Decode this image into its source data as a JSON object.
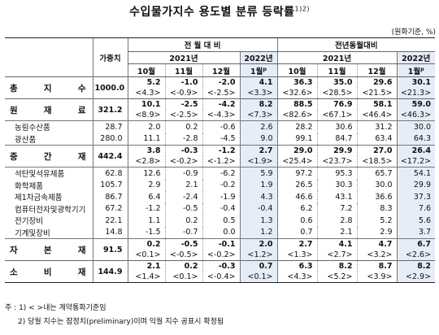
{
  "title": "수입물가지수 용도별 분류 등락률",
  "title_note": "1)2)",
  "unit": "(원화기준, %)",
  "header": {
    "weight": "가중치",
    "mom": "전 월 대 비",
    "yoy": "전년동월대비",
    "y2021": "2021년",
    "y2022": "2022년",
    "months": [
      "10월",
      "11월",
      "12월",
      "1월"
    ],
    "prelim_mark": "p"
  },
  "rows": [
    {
      "label": "총 지 수",
      "weight": "1000.0",
      "vals": [
        "5.2",
        "-1.0",
        "-2.0",
        "4.1",
        "36.3",
        "35.0",
        "29.6",
        "30.1"
      ],
      "paren": [
        "<4.3>",
        "<-0.9>",
        "<-2.5>",
        "<3.3>",
        "<32.6>",
        "<28.5>",
        "<21.5>",
        "<21.3>"
      ],
      "subs": []
    },
    {
      "label": "원 재 료",
      "weight": "321.2",
      "vals": [
        "10.1",
        "-2.5",
        "-4.2",
        "8.2",
        "88.5",
        "76.9",
        "58.1",
        "59.0"
      ],
      "paren": [
        "<8.9>",
        "<-2.5>",
        "<-4.3>",
        "<7.3>",
        "<82.6>",
        "<67.1>",
        "<46.4>",
        "<46.3>"
      ],
      "subs": [
        {
          "label": "농림수산품",
          "weight": "28.7",
          "vals": [
            "2.0",
            "0.2",
            "-0.6",
            "2.6",
            "28.2",
            "30.6",
            "31.2",
            "30.0"
          ]
        },
        {
          "label": "광산품",
          "weight": "280.0",
          "vals": [
            "11.1",
            "-2.8",
            "-4.5",
            "9.0",
            "99.1",
            "84.7",
            "63.4",
            "64.3"
          ]
        }
      ]
    },
    {
      "label": "중 간 재",
      "weight": "442.4",
      "vals": [
        "3.8",
        "-0.3",
        "-1.2",
        "2.7",
        "29.0",
        "29.9",
        "27.0",
        "26.4"
      ],
      "paren": [
        "<2.8>",
        "<-0.2>",
        "<-1.2>",
        "<1.9>",
        "<25.4>",
        "<23.7>",
        "<18.5>",
        "<17.2>"
      ],
      "subs": [
        {
          "label": "석탄및석유제품",
          "weight": "62.8",
          "vals": [
            "12.6",
            "-0.9",
            "-6.2",
            "5.9",
            "97.2",
            "95.3",
            "65.7",
            "54.1"
          ]
        },
        {
          "label": "화학제품",
          "weight": "105.7",
          "vals": [
            "2.9",
            "2.1",
            "-0.2",
            "1.9",
            "26.5",
            "30.3",
            "30.0",
            "29.9"
          ]
        },
        {
          "label": "제1차금속제품",
          "weight": "86.7",
          "vals": [
            "6.4",
            "-2.4",
            "-1.9",
            "4.3",
            "46.6",
            "43.1",
            "36.6",
            "37.3"
          ]
        },
        {
          "label": "컴퓨터전자및광학기기",
          "weight": "67.2",
          "vals": [
            "-1.2",
            "-0.5",
            "-0.4",
            "-0.4",
            "6.2",
            "7.2",
            "8.3",
            "7.6"
          ]
        },
        {
          "label": "전기장비",
          "weight": "22.1",
          "vals": [
            "1.1",
            "0.2",
            "0.5",
            "1.3",
            "0.6",
            "2.8",
            "5.2",
            "5.6"
          ]
        },
        {
          "label": "기계및장비",
          "weight": "14.8",
          "vals": [
            "-1.5",
            "-0.7",
            "0.0",
            "1.2",
            "0.7",
            "2.1",
            "2.9",
            "3.7"
          ]
        }
      ]
    },
    {
      "label": "자 본 재",
      "weight": "91.5",
      "vals": [
        "0.2",
        "-0.5",
        "-0.1",
        "2.0",
        "2.7",
        "4.1",
        "4.7",
        "6.7"
      ],
      "paren": [
        "<0.1>",
        "<-0.5>",
        "<-0.2>",
        "<1.2>",
        "<1.3>",
        "<2.7>",
        "<3.2>",
        "<2.6>"
      ],
      "subs": []
    },
    {
      "label": "소 비 재",
      "weight": "144.9",
      "vals": [
        "2.1",
        "0.2",
        "-0.3",
        "0.7",
        "6.3",
        "8.2",
        "8.7",
        "8.2"
      ],
      "paren": [
        "<1.4>",
        "<0.1>",
        "<-0.4>",
        "<0.1>",
        "<4.3>",
        "<5.2>",
        "<3.9>",
        "<2.9>"
      ],
      "subs": []
    }
  ],
  "notes": {
    "label": "주 :",
    "n1": "1) < >내는 계약통화기준임",
    "n2": "2) 당월 지수는 잠정치(preliminary)이며 익월 지수 공표시 확정됨"
  }
}
